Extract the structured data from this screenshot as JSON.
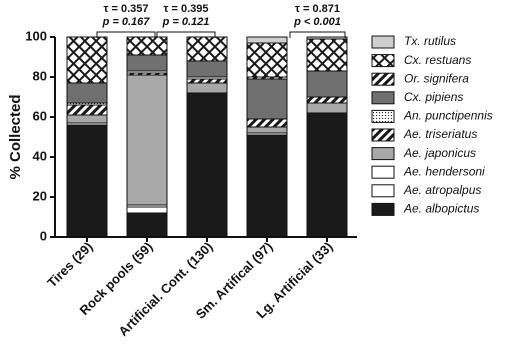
{
  "chart_data": {
    "type": "stacked_bar",
    "y_label": "% Collected",
    "categories": [
      "Tires (29)",
      "Rock pools (59)",
      "Artificial. Cont. (130)",
      "Sm. Artifical (97)",
      "Lg. Artificial (33)"
    ],
    "ylim": [
      0,
      100
    ],
    "yticks": [
      0,
      20,
      40,
      60,
      80,
      100
    ],
    "series": [
      {
        "name": "Ae. albopictus",
        "color": "#1a1a1a",
        "pattern": "solid",
        "values": [
          56,
          12,
          72,
          51,
          62
        ]
      },
      {
        "name": "Ae. atropalpus",
        "color": "#ffffff",
        "pattern": "solid",
        "values": [
          0,
          3,
          0,
          0,
          0
        ]
      },
      {
        "name": "Ae. hendersoni",
        "color": "#ffffff",
        "pattern": "solid",
        "values": [
          1,
          1,
          0,
          1,
          0
        ]
      },
      {
        "name": "Ae. japonicus",
        "color": "#a8a8a8",
        "pattern": "solid",
        "values": [
          4,
          65,
          5,
          3,
          5
        ]
      },
      {
        "name": "Ae. triseriatus",
        "color": "#1a1a1a",
        "pattern": "hatch",
        "values": [
          5,
          1,
          2,
          4,
          3
        ]
      },
      {
        "name": "An. punctipennis",
        "color": "#1a1a1a",
        "pattern": "dots",
        "values": [
          1,
          1,
          1,
          0,
          0
        ]
      },
      {
        "name": "Cx. pipiens",
        "color": "#707070",
        "pattern": "solid",
        "values": [
          10,
          8,
          8,
          20,
          13
        ]
      },
      {
        "name": "Or. signifera",
        "color": "#1a1a1a",
        "pattern": "hatch",
        "values": [
          0,
          0,
          0,
          1,
          0
        ]
      },
      {
        "name": "Cx. restuans",
        "color": "#1a1a1a",
        "pattern": "crosshatch",
        "values": [
          23,
          9,
          12,
          17,
          16
        ]
      },
      {
        "name": "Tx. rutilus",
        "color": "#cfcfcf",
        "pattern": "solid",
        "values": [
          0,
          0,
          0,
          3,
          1
        ]
      }
    ],
    "annotations": [
      {
        "tau": "τ = 0.357",
        "p": "p = 0.167"
      },
      {
        "tau": "τ = 0.395",
        "p": "p = 0.121"
      },
      {
        "tau": "τ = 0.871",
        "p": "p < 0.001"
      }
    ]
  }
}
